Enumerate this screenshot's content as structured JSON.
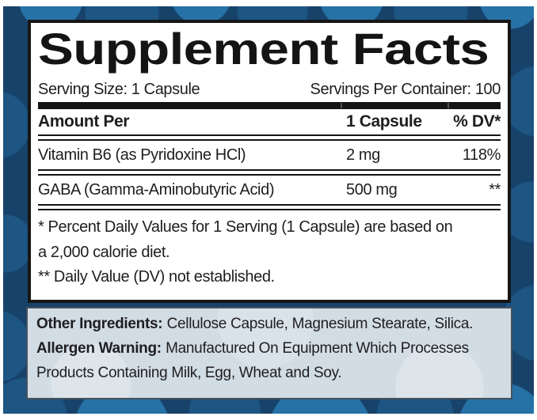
{
  "colors": {
    "navy": "#17426a",
    "pattern_blue": "#1d5583",
    "pattern_blue_light": "#2671a6",
    "panel_bg": "#ffffff",
    "panel_border": "#161616",
    "info_panel_bg": "#d2dce4",
    "info_panel_border": "#47525c",
    "text_color": "#1e1e20",
    "rule_color": "#141414"
  },
  "label": {
    "title": "Supplement Facts",
    "serving_size": "Serving Size: 1 Capsule",
    "servings_per_container": "Servings Per Container: 100",
    "table": {
      "headers": [
        "Amount Per",
        "1 Capsule",
        "% DV*"
      ],
      "rows": [
        {
          "name": "Vitamin B6 (as Pyridoxine HCl)",
          "amount": "2 mg",
          "dv": "118%"
        },
        {
          "name": "GABA (Gamma-Aminobutyric Acid)",
          "amount": "500 mg",
          "dv": "**"
        }
      ]
    },
    "footnotes": {
      "lines": [
        "* Percent Daily Values for 1 Serving (1 Capsule) are based on",
        "a 2,000 calorie diet.",
        "** Daily Value (DV) not established."
      ]
    },
    "other_ingredients": {
      "label": "Other Ingredients:",
      "text": "Cellulose Capsule, Magnesium Stearate, Silica."
    },
    "allergen_warning": {
      "label": "Allergen Warning:",
      "text_line1": "Manufactured On Equipment Which Processes",
      "text_line2": "Products Containing Milk, Egg, Wheat and Soy."
    }
  }
}
